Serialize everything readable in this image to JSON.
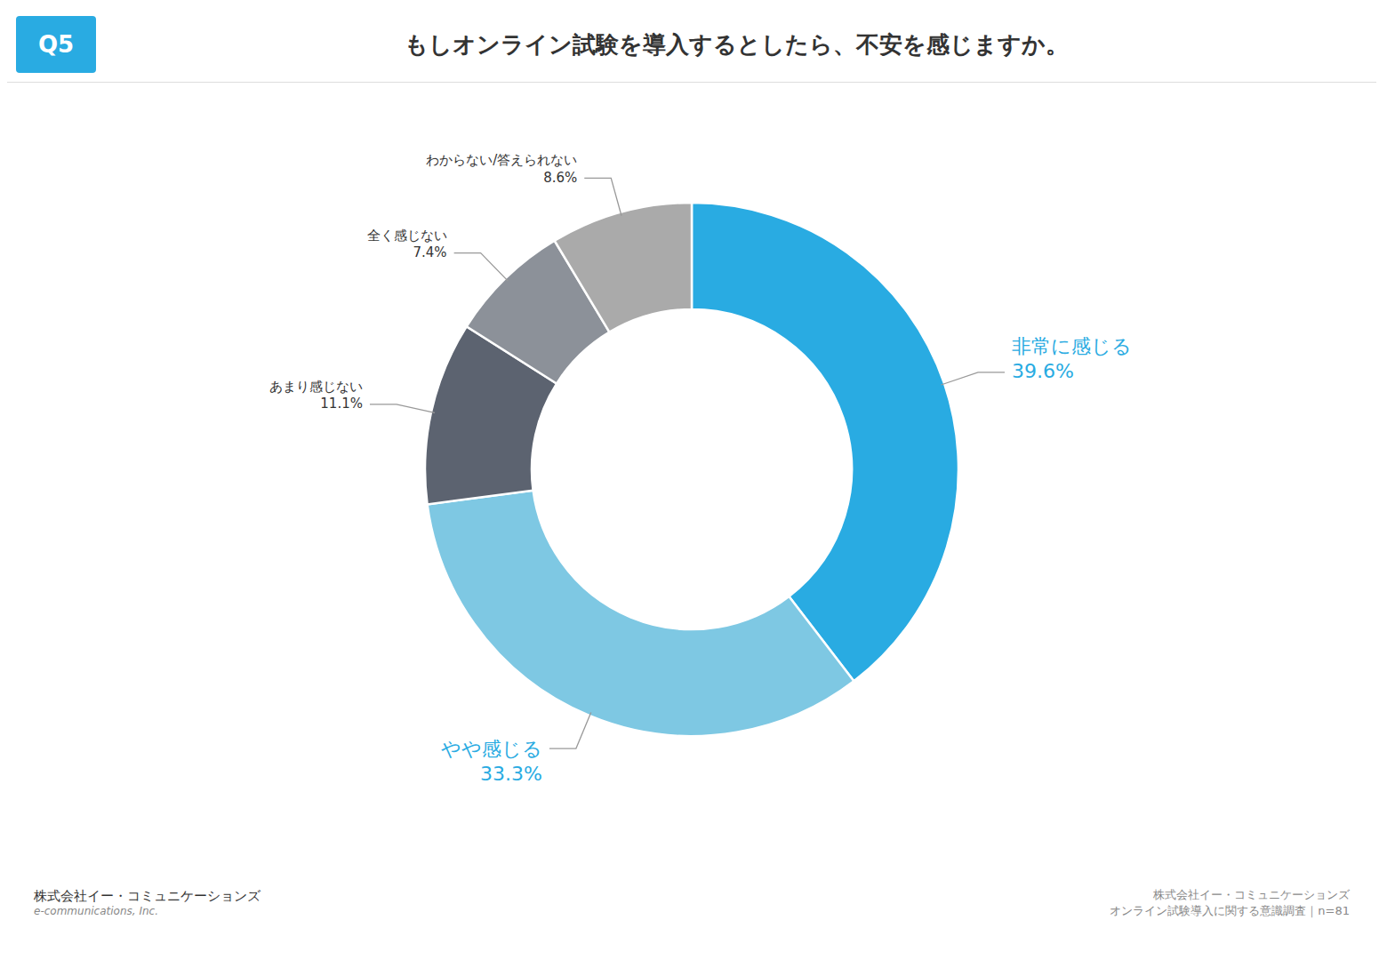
{
  "chart_data": {
    "type": "pie",
    "title": "もしオンライン試験を導入するとしたら、不安を感じますか。",
    "categories": [
      "非常に感じる",
      "やや感じる",
      "あまり感じない",
      "全く感じない",
      "わからない/答えられない"
    ],
    "values": [
      39.6,
      33.3,
      11.1,
      7.4,
      8.6
    ],
    "value_labels": [
      "39.6%",
      "33.3%",
      "11.1%",
      "7.4%",
      "8.6%"
    ],
    "colors": [
      "#29ABE2",
      "#7EC8E3",
      "#5C6370",
      "#8C9199",
      "#AAAAAA"
    ],
    "data_labels": true,
    "annotations": [
      "Q5",
      "株式会社イー・コミュニケーションズ",
      "e-communications, Inc.",
      "株式会社イー・コミュニケーションズ",
      "オンライン試験導入に関する意識調査｜n=81"
    ]
  }
}
